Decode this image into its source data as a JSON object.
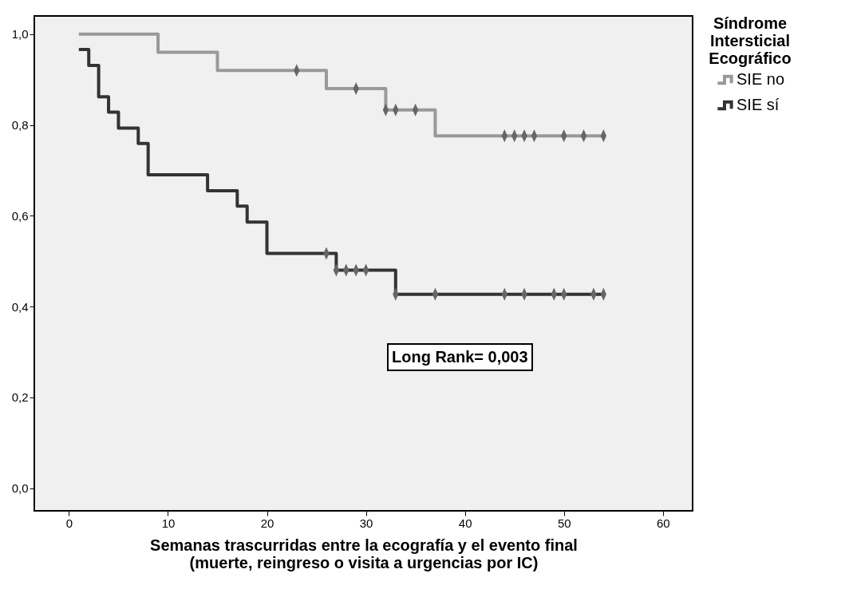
{
  "chart_data": {
    "type": "step",
    "xlabel": "Semanas trascurridas entre la ecografía y el evento final\n(muerte, reingreso o visita a urgencias por IC)",
    "legend_title": "Síndrome Intersticial Ecográfico",
    "legend": "right",
    "grid": false,
    "line_style": "solid",
    "xlim": [
      -3.5,
      63
    ],
    "xticks": [
      0,
      10,
      20,
      30,
      40,
      50,
      60
    ],
    "ylim": [
      -0.05,
      1.04
    ],
    "yticks": [
      {
        "value": 0,
        "label": "0,0"
      },
      {
        "value": 0.2,
        "label": "0,2"
      },
      {
        "value": 0.4,
        "label": "0,4"
      },
      {
        "value": 0.6,
        "label": "0,6"
      },
      {
        "value": 0.8,
        "label": "0,8"
      },
      {
        "value": 1,
        "label": "1,0"
      }
    ],
    "series": [
      {
        "name": "SIE no",
        "color": "#999999",
        "x": [
          1,
          9,
          15,
          26,
          32,
          37,
          54
        ],
        "values": [
          1,
          0.96,
          0.92,
          0.88,
          0.833,
          0.776,
          0.776
        ]
      },
      {
        "name": "SIE sí",
        "color": "#333333",
        "x": [
          1,
          2,
          3,
          4,
          5,
          7,
          8,
          14,
          17,
          18,
          20,
          27,
          33,
          54
        ],
        "values": [
          0.966,
          0.931,
          0.862,
          0.828,
          0.793,
          0.759,
          0.69,
          0.655,
          0.621,
          0.586,
          0.517,
          0.48,
          0.427,
          0.427
        ]
      },
      {
        "type": "scatter",
        "marker": "diamond",
        "color": "#666666",
        "x": [
          23,
          29,
          32,
          33,
          35,
          44,
          45,
          46,
          47,
          50,
          52,
          54
        ],
        "values": [
          0.92,
          0.88,
          0.833,
          0.833,
          0.833,
          0.776,
          0.776,
          0.776,
          0.776,
          0.776,
          0.776,
          0.776
        ]
      },
      {
        "type": "scatter",
        "marker": "diamond",
        "color": "#666666",
        "x": [
          26,
          27,
          28,
          29,
          30,
          33,
          37,
          44,
          46,
          49,
          50,
          53,
          54
        ],
        "values": [
          0.517,
          0.48,
          0.48,
          0.48,
          0.48,
          0.427,
          0.427,
          0.427,
          0.427,
          0.427,
          0.427,
          0.427,
          0.427
        ]
      }
    ],
    "annotations": [
      "Long Rank= 0,003"
    ]
  }
}
